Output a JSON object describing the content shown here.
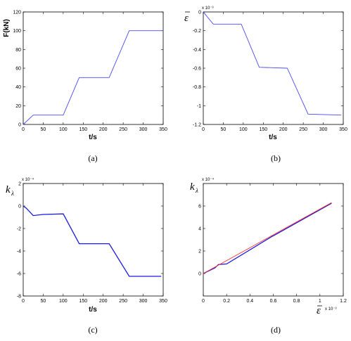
{
  "chart_data": [
    {
      "id": "a",
      "type": "line",
      "caption": "(a)",
      "xlabel": "t/s",
      "ylabel": "F(kN)",
      "xlim": [
        0,
        350
      ],
      "ylim": [
        0,
        120
      ],
      "xticks": [
        "0",
        "50",
        "100",
        "150",
        "200",
        "250",
        "300",
        "350"
      ],
      "yticks": [
        "0",
        "20",
        "40",
        "60",
        "80",
        "100",
        "120"
      ],
      "exponent": "",
      "grid": false,
      "series": [
        {
          "color": "#4a4af0",
          "x": [
            0,
            25,
            100,
            140,
            215,
            265,
            350
          ],
          "y": [
            0,
            10,
            10,
            50,
            50,
            100,
            100
          ]
        }
      ]
    },
    {
      "id": "b",
      "type": "line",
      "caption": "(b)",
      "xlabel": "t/s",
      "ylabel": "ε",
      "xlim": [
        0,
        350
      ],
      "ylim": [
        -1.2,
        0
      ],
      "xticks": [
        "0",
        "50",
        "100",
        "150",
        "200",
        "250",
        "300",
        "350"
      ],
      "yticks": [
        "0",
        "-0.2",
        "-0.4",
        "-0.6",
        "-0.8",
        "-1",
        "-1.2"
      ],
      "exponent": "x 10⁻³",
      "grid": false,
      "series": [
        {
          "color": "#4a4af0",
          "x": [
            0,
            25,
            95,
            140,
            210,
            262,
            345
          ],
          "y": [
            0,
            -0.13,
            -0.13,
            -0.59,
            -0.6,
            -1.09,
            -1.1
          ]
        }
      ]
    },
    {
      "id": "c",
      "type": "line",
      "caption": "(c)",
      "xlabel": "t/s",
      "ylabel": "k",
      "ylabel_sub": "λ",
      "xlim": [
        0,
        350
      ],
      "ylim": [
        -8,
        2
      ],
      "xticks": [
        "0",
        "50",
        "100",
        "150",
        "200",
        "250",
        "300",
        "350"
      ],
      "yticks": [
        "2",
        "0",
        "-2",
        "-4",
        "-6",
        "-8"
      ],
      "exponent": "x 10⁻⁴",
      "grid": false,
      "series": [
        {
          "color": "#1a1ae0",
          "x": [
            0,
            8,
            25,
            50,
            100,
            140,
            215,
            265,
            345
          ],
          "y": [
            0,
            -0.2,
            -0.85,
            -0.75,
            -0.7,
            -3.35,
            -3.35,
            -6.25,
            -6.25
          ]
        }
      ]
    },
    {
      "id": "d",
      "type": "line",
      "caption": "(d)",
      "xlabel": "ε",
      "xlabel_exponent": "x 10⁻³",
      "ylabel": "k",
      "ylabel_sub": "λ",
      "xlim": [
        0,
        1.2
      ],
      "ylim": [
        -2,
        8
      ],
      "xticks": [
        "0",
        "0.2",
        "0.4",
        "0.6",
        "0.8",
        "1",
        "1.2"
      ],
      "yticks": [
        "0",
        "2",
        "4",
        "6"
      ],
      "exponent": "x 10⁻⁴",
      "grid": false,
      "series": [
        {
          "color": "#1a1ae0",
          "x": [
            0,
            0.1,
            0.13,
            0.2,
            0.59,
            0.6,
            1.1
          ],
          "y": [
            0,
            0.5,
            0.8,
            0.85,
            3.3,
            3.35,
            6.25
          ]
        },
        {
          "color": "#ff3030",
          "x": [
            0,
            1.1
          ],
          "y": [
            0,
            6.3
          ]
        }
      ]
    }
  ]
}
